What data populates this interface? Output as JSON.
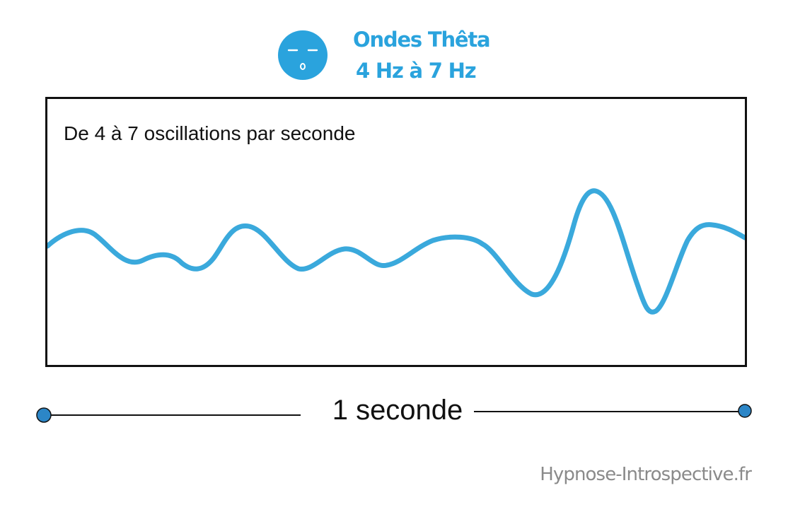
{
  "header": {
    "title": "Ondes Thêta",
    "subtitle": "4 Hz à 7 Hz",
    "icon": "sleeping-face-icon"
  },
  "panel": {
    "caption": "De 4 à 7 oscillations par seconde"
  },
  "scale": {
    "label": "1 seconde"
  },
  "footer": {
    "credit": "Hypnose-Introspective.fr"
  },
  "colors": {
    "accent": "#2aa3dd",
    "wave": "#3aa9dc",
    "frame": "#111111",
    "marker": "#2c86c7",
    "credit": "#8a8a8a"
  }
}
